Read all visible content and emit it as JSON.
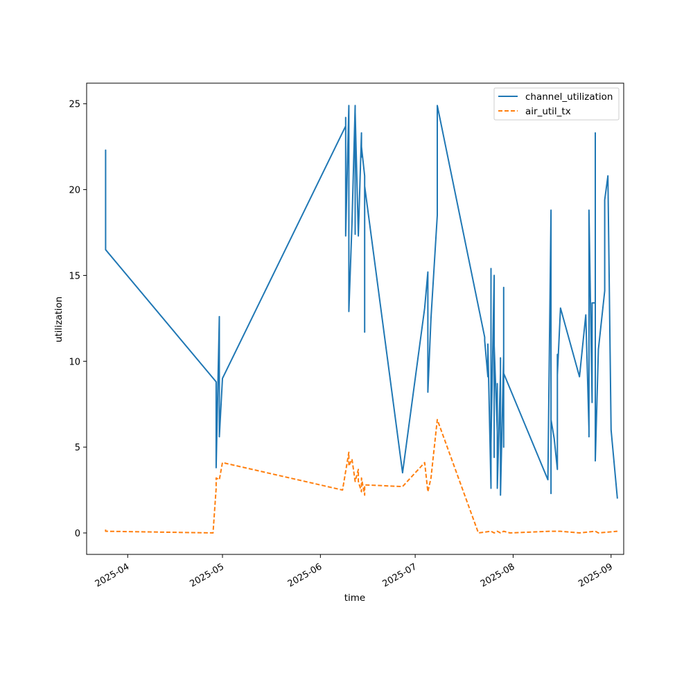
{
  "chart_data": {
    "type": "line",
    "title": "",
    "xlabel": "time",
    "ylabel": "utilization",
    "x_axis_type": "date",
    "xlim": [
      "2025-03-19",
      "2025-09-05"
    ],
    "ylim": [
      -1.25,
      26.2
    ],
    "x_ticks": [
      "2025-04-01",
      "2025-05-01",
      "2025-06-01",
      "2025-07-01",
      "2025-08-01",
      "2025-09-01"
    ],
    "x_tick_labels": [
      "2025-04",
      "2025-05",
      "2025-06",
      "2025-07",
      "2025-08",
      "2025-09"
    ],
    "y_ticks": [
      0,
      5,
      10,
      15,
      20,
      25
    ],
    "y_tick_labels": [
      "0",
      "5",
      "10",
      "15",
      "20",
      "25"
    ],
    "grid": false,
    "legend_position": "top-right",
    "series": [
      {
        "name": "channel_utilization",
        "color": "#1f77b4",
        "style": "solid",
        "points": [
          [
            "2025-03-25",
            22.1
          ],
          [
            "2025-03-25",
            22.3
          ],
          [
            "2025-03-25",
            22.0
          ],
          [
            "2025-03-25",
            16.5
          ],
          [
            "2025-04-29",
            8.8
          ],
          [
            "2025-04-29",
            3.8
          ],
          [
            "2025-04-30",
            12.6
          ],
          [
            "2025-04-30",
            5.6
          ],
          [
            "2025-05-01",
            9.0
          ],
          [
            "2025-06-09",
            23.7
          ],
          [
            "2025-06-09",
            24.2
          ],
          [
            "2025-06-09",
            22.8
          ],
          [
            "2025-06-09",
            17.3
          ],
          [
            "2025-06-10",
            24.9
          ],
          [
            "2025-06-10",
            12.9
          ],
          [
            "2025-06-11",
            18.0
          ],
          [
            "2025-06-12",
            24.9
          ],
          [
            "2025-06-12",
            17.4
          ],
          [
            "2025-06-12",
            24.5
          ],
          [
            "2025-06-13",
            17.3
          ],
          [
            "2025-06-14",
            23.3
          ],
          [
            "2025-06-14",
            21.9
          ],
          [
            "2025-06-14",
            22.5
          ],
          [
            "2025-06-15",
            20.8
          ],
          [
            "2025-06-15",
            11.7
          ],
          [
            "2025-06-15",
            20.2
          ],
          [
            "2025-06-27",
            3.5
          ],
          [
            "2025-07-04",
            13.1
          ],
          [
            "2025-07-05",
            15.2
          ],
          [
            "2025-07-05",
            8.2
          ],
          [
            "2025-07-06",
            12.5
          ],
          [
            "2025-07-08",
            18.5
          ],
          [
            "2025-07-08",
            24.9
          ],
          [
            "2025-07-23",
            11.4
          ],
          [
            "2025-07-23",
            11.2
          ],
          [
            "2025-07-24",
            9.1
          ],
          [
            "2025-07-24",
            11.0
          ],
          [
            "2025-07-25",
            2.6
          ],
          [
            "2025-07-25",
            15.4
          ],
          [
            "2025-07-25",
            5.2
          ],
          [
            "2025-07-26",
            15.0
          ],
          [
            "2025-07-26",
            4.4
          ],
          [
            "2025-07-26",
            10.9
          ],
          [
            "2025-07-27",
            5.9
          ],
          [
            "2025-07-27",
            8.7
          ],
          [
            "2025-07-27",
            2.6
          ],
          [
            "2025-07-28",
            9.3
          ],
          [
            "2025-07-28",
            10.2
          ],
          [
            "2025-07-28",
            2.2
          ],
          [
            "2025-07-29",
            10.4
          ],
          [
            "2025-07-29",
            5.0
          ],
          [
            "2025-07-29",
            14.3
          ],
          [
            "2025-07-29",
            9.3
          ],
          [
            "2025-08-12",
            3.1
          ],
          [
            "2025-08-13",
            18.8
          ],
          [
            "2025-08-13",
            2.3
          ],
          [
            "2025-08-13",
            6.6
          ],
          [
            "2025-08-14",
            5.5
          ],
          [
            "2025-08-15",
            3.7
          ],
          [
            "2025-08-15",
            10.4
          ],
          [
            "2025-08-15",
            9.2
          ],
          [
            "2025-08-16",
            13.1
          ],
          [
            "2025-08-22",
            9.1
          ],
          [
            "2025-08-24",
            12.7
          ],
          [
            "2025-08-25",
            6.0
          ],
          [
            "2025-08-25",
            8.5
          ],
          [
            "2025-08-25",
            5.6
          ],
          [
            "2025-08-25",
            18.8
          ],
          [
            "2025-08-26",
            7.6
          ],
          [
            "2025-08-26",
            13.4
          ],
          [
            "2025-08-27",
            13.4
          ],
          [
            "2025-08-27",
            23.3
          ],
          [
            "2025-08-27",
            16.6
          ],
          [
            "2025-08-27",
            4.2
          ],
          [
            "2025-08-28",
            10.7
          ],
          [
            "2025-08-30",
            14.1
          ],
          [
            "2025-08-30",
            19.4
          ],
          [
            "2025-08-31",
            20.8
          ],
          [
            "2025-09-01",
            6.0
          ],
          [
            "2025-09-03",
            2.0
          ]
        ]
      },
      {
        "name": "air_util_tx",
        "color": "#ff7f0e",
        "style": "dashed",
        "points": [
          [
            "2025-03-25",
            0.2
          ],
          [
            "2025-03-25",
            0.1
          ],
          [
            "2025-04-28",
            0.0
          ],
          [
            "2025-04-29",
            2.6
          ],
          [
            "2025-04-29",
            3.2
          ],
          [
            "2025-04-30",
            3.1
          ],
          [
            "2025-05-01",
            4.1
          ],
          [
            "2025-06-08",
            2.5
          ],
          [
            "2025-06-10",
            4.7
          ],
          [
            "2025-06-10",
            3.9
          ],
          [
            "2025-06-11",
            4.3
          ],
          [
            "2025-06-12",
            3.0
          ],
          [
            "2025-06-13",
            3.7
          ],
          [
            "2025-06-13",
            3.0
          ],
          [
            "2025-06-14",
            2.4
          ],
          [
            "2025-06-14",
            3.2
          ],
          [
            "2025-06-15",
            2.2
          ],
          [
            "2025-06-15",
            2.8
          ],
          [
            "2025-06-27",
            2.7
          ],
          [
            "2025-07-04",
            4.1
          ],
          [
            "2025-07-05",
            2.4
          ],
          [
            "2025-07-06",
            3.2
          ],
          [
            "2025-07-08",
            6.6
          ],
          [
            "2025-07-21",
            0.0
          ],
          [
            "2025-07-25",
            0.1
          ],
          [
            "2025-07-26",
            0.0
          ],
          [
            "2025-07-27",
            0.1
          ],
          [
            "2025-07-28",
            0.0
          ],
          [
            "2025-07-29",
            0.1
          ],
          [
            "2025-07-31",
            0.0
          ],
          [
            "2025-08-13",
            0.1
          ],
          [
            "2025-08-16",
            0.1
          ],
          [
            "2025-08-22",
            0.0
          ],
          [
            "2025-08-27",
            0.1
          ],
          [
            "2025-08-28",
            0.0
          ],
          [
            "2025-09-03",
            0.1
          ]
        ]
      }
    ]
  }
}
